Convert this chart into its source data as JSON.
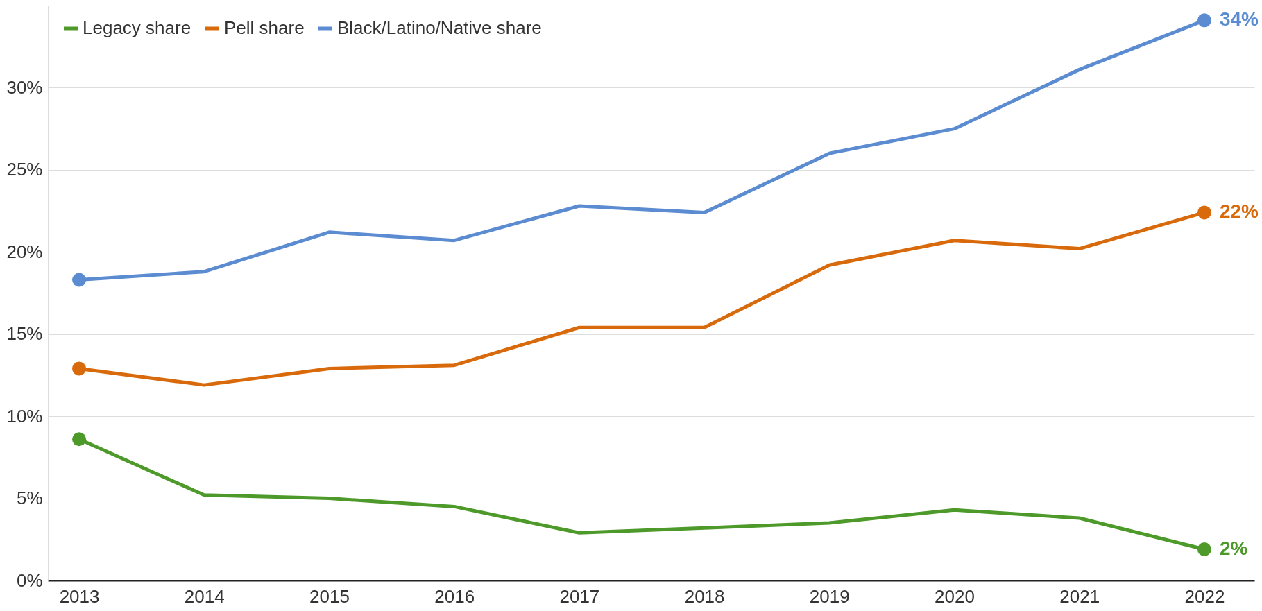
{
  "chart_data": {
    "type": "line",
    "categories": [
      "2013",
      "2014",
      "2015",
      "2016",
      "2017",
      "2018",
      "2019",
      "2020",
      "2021",
      "2022"
    ],
    "series": [
      {
        "name": "Legacy share",
        "color": "#4d9a2a",
        "values": [
          8.6,
          5.2,
          5.0,
          4.5,
          2.9,
          3.2,
          3.5,
          4.3,
          3.8,
          1.9
        ],
        "value_labels": [
          null,
          null,
          null,
          null,
          null,
          null,
          null,
          null,
          null,
          "2%"
        ]
      },
      {
        "name": "Pell share",
        "color": "#d96a0c",
        "values": [
          12.9,
          11.9,
          12.9,
          13.1,
          15.4,
          15.4,
          19.2,
          20.7,
          20.2,
          22.4
        ],
        "value_labels": [
          null,
          null,
          null,
          null,
          null,
          null,
          null,
          null,
          null,
          "22%"
        ]
      },
      {
        "name": "Black/Latino/Native share",
        "color": "#5b8bd0",
        "values": [
          18.3,
          18.8,
          21.2,
          20.7,
          22.8,
          22.4,
          26.0,
          27.5,
          31.1,
          34.1
        ],
        "value_labels": [
          null,
          null,
          null,
          null,
          null,
          null,
          null,
          null,
          null,
          "34%"
        ]
      }
    ],
    "ylim": [
      0,
      35
    ],
    "yticks": [
      {
        "value": 0,
        "label": "0%"
      },
      {
        "value": 5,
        "label": "5%"
      },
      {
        "value": 10,
        "label": "10%"
      },
      {
        "value": 15,
        "label": "15%"
      },
      {
        "value": 20,
        "label": "20%"
      },
      {
        "value": 25,
        "label": "25%"
      },
      {
        "value": 30,
        "label": "30%"
      }
    ],
    "grid": "y",
    "legend": "top left",
    "line_style": "solid"
  }
}
